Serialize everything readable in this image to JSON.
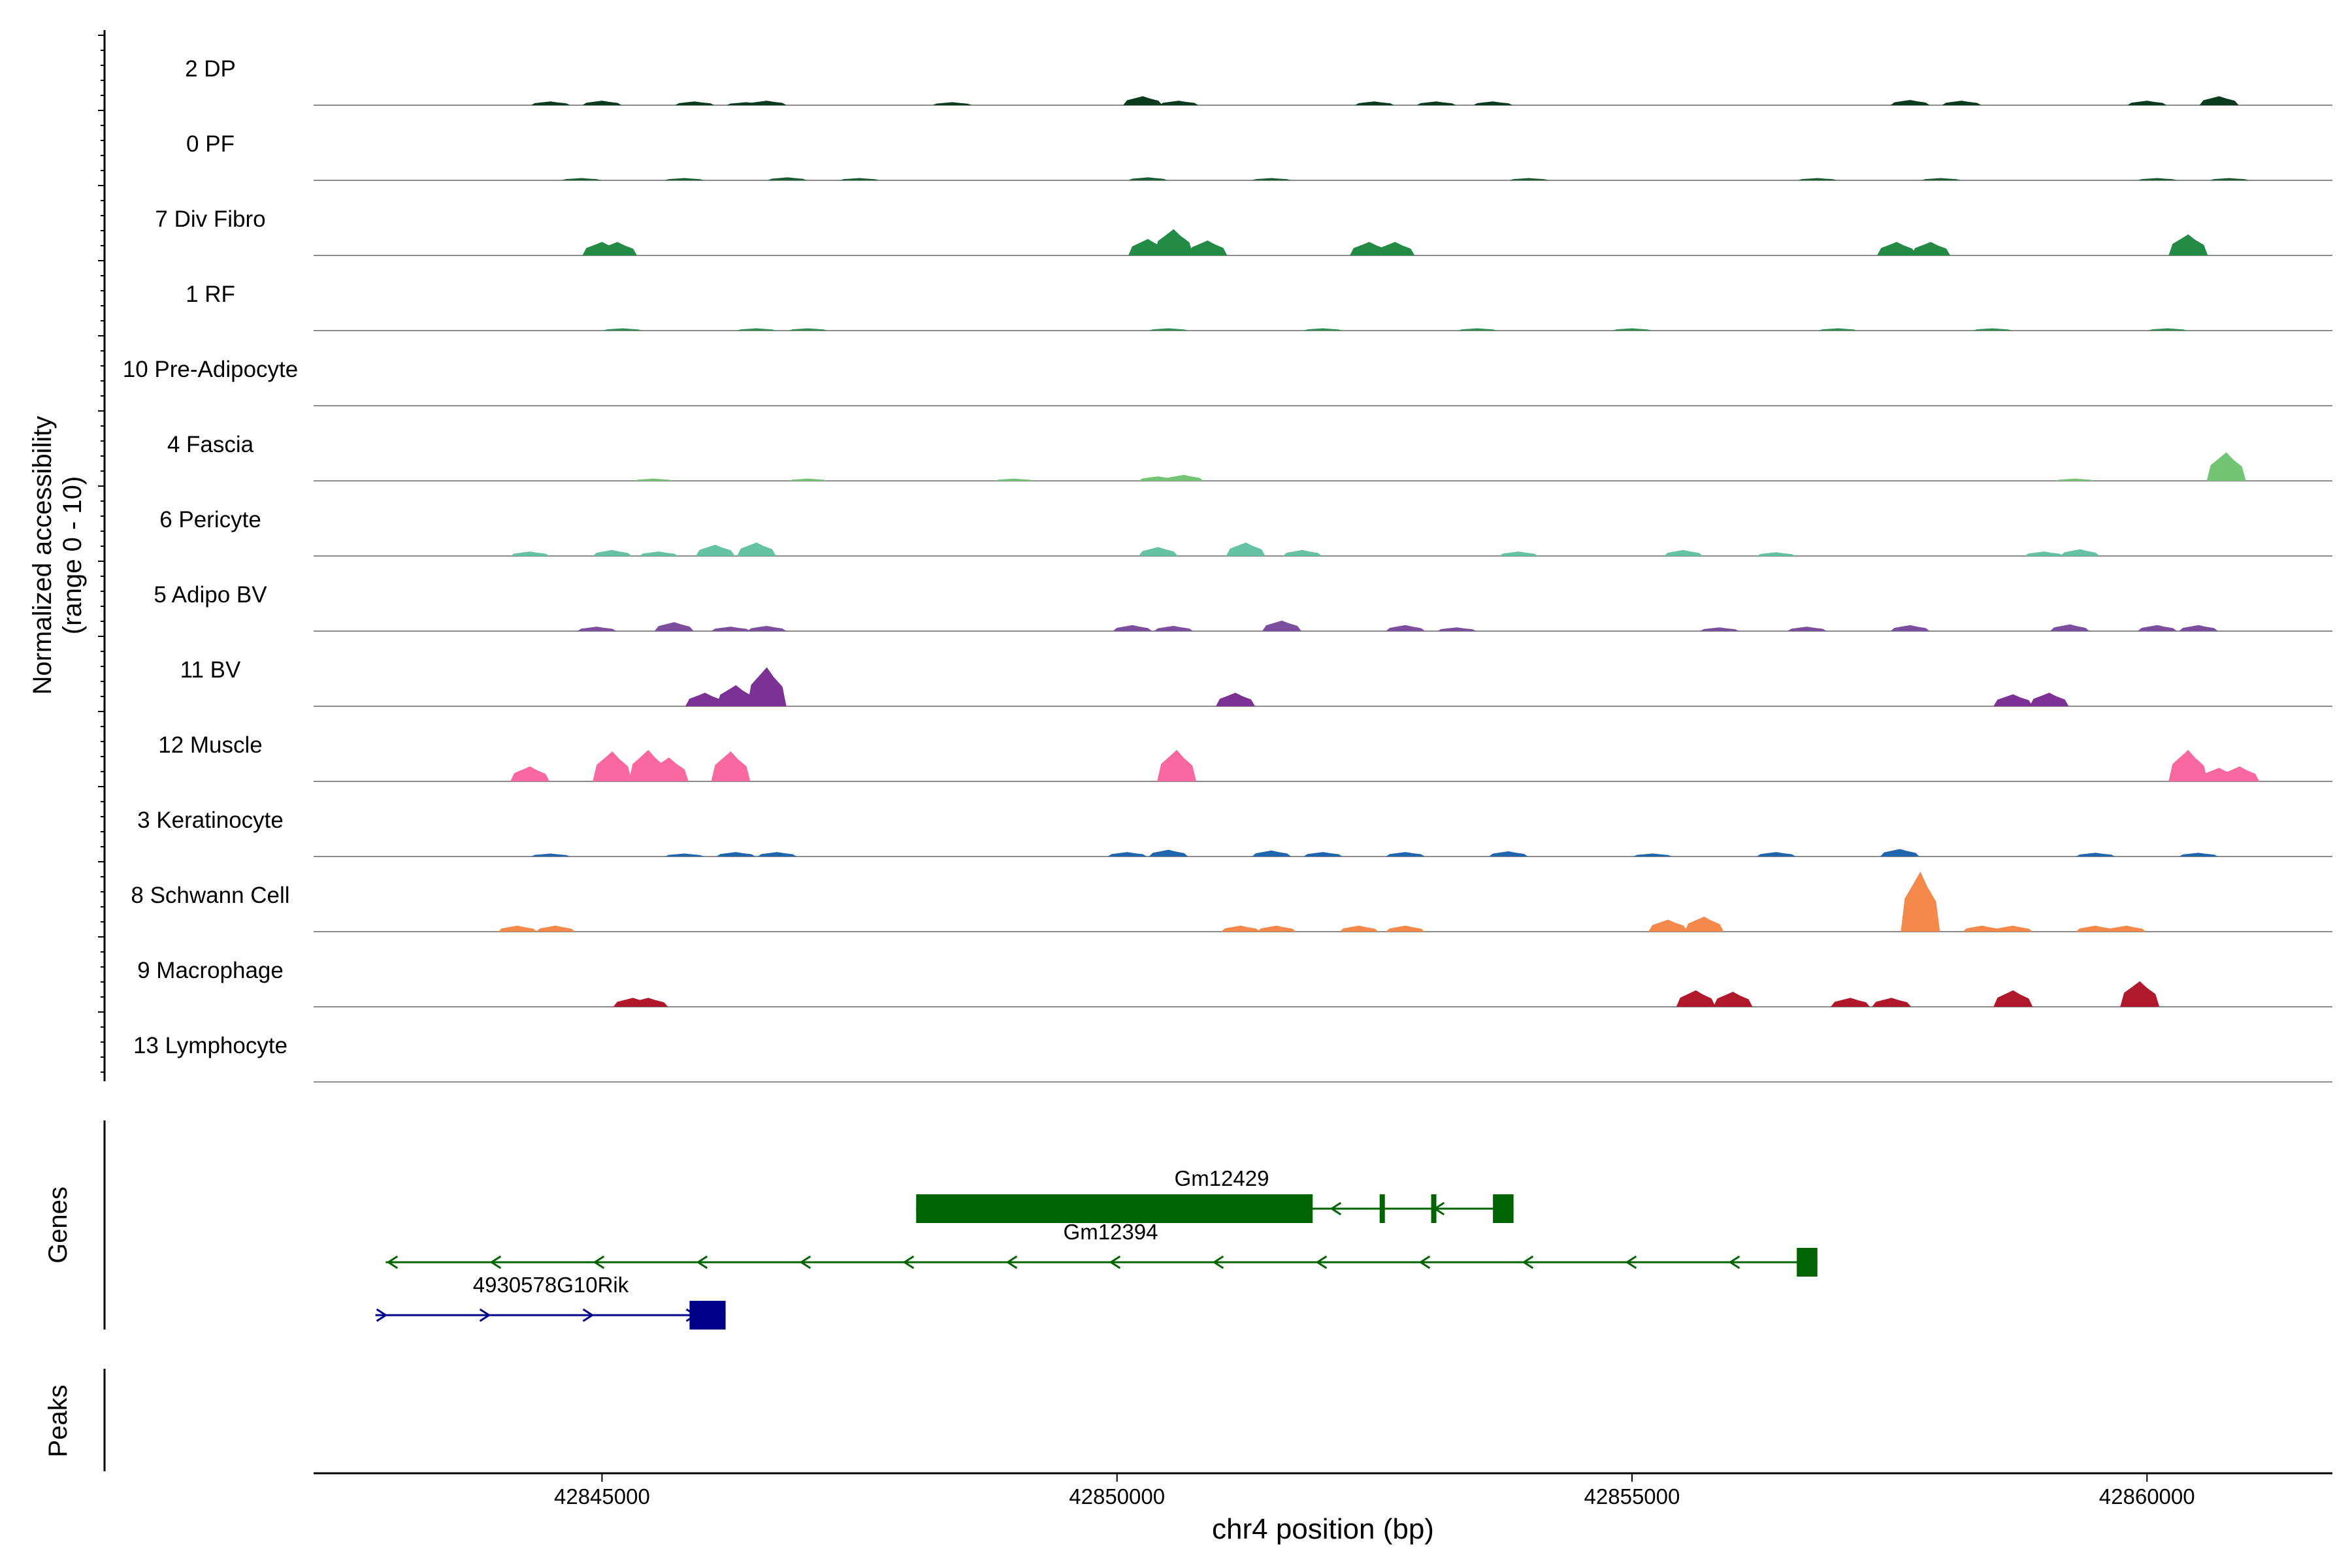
{
  "chart_data": {
    "type": "area",
    "title": "",
    "xlabel": "chr4 position (bp)",
    "ylabel_line1": "Normalized accessibility",
    "ylabel_line2": "(range 0 - 10)",
    "xlim": [
      42842200,
      42861800
    ],
    "ylim": [
      0,
      10
    ],
    "x_ticks": [
      42845000,
      42850000,
      42855000,
      42860000
    ],
    "x_tick_labels": [
      "42845000",
      "42850000",
      "42855000",
      "42860000"
    ],
    "panel_labels": {
      "genes": "Genes",
      "peaks": "Peaks"
    },
    "colors": {
      "baseline": "#8c8c8c",
      "axis": "#000000",
      "gene_green": "#006400",
      "gene_blue": "#00008b"
    },
    "tracks": [
      {
        "name": "2 DP",
        "color": "#0b3b1e",
        "peaks": [
          [
            42844500,
            0.5
          ],
          [
            42845000,
            0.6
          ],
          [
            42845900,
            0.5
          ],
          [
            42846400,
            0.4
          ],
          [
            42846600,
            0.6
          ],
          [
            42848400,
            0.4
          ],
          [
            42850250,
            1.2
          ],
          [
            42850600,
            0.6
          ],
          [
            42852500,
            0.5
          ],
          [
            42853100,
            0.5
          ],
          [
            42853650,
            0.5
          ],
          [
            42857700,
            0.7
          ],
          [
            42858200,
            0.6
          ],
          [
            42860000,
            0.6
          ],
          [
            42860700,
            1.2
          ]
        ]
      },
      {
        "name": "0 PF",
        "color": "#1a5c33",
        "peaks": [
          [
            42844800,
            0.3
          ],
          [
            42845800,
            0.3
          ],
          [
            42846800,
            0.4
          ],
          [
            42847500,
            0.3
          ],
          [
            42850300,
            0.4
          ],
          [
            42851500,
            0.3
          ],
          [
            42854000,
            0.3
          ],
          [
            42856800,
            0.3
          ],
          [
            42858000,
            0.3
          ],
          [
            42860100,
            0.3
          ],
          [
            42860800,
            0.3
          ]
        ]
      },
      {
        "name": "7 Div Fibro",
        "color": "#238b45",
        "peaks": [
          [
            42845000,
            1.8
          ],
          [
            42845150,
            1.8
          ],
          [
            42850300,
            2.2
          ],
          [
            42850550,
            3.5
          ],
          [
            42850880,
            2.0
          ],
          [
            42852450,
            1.8
          ],
          [
            42852700,
            1.8
          ],
          [
            42857570,
            1.8
          ],
          [
            42857900,
            1.8
          ],
          [
            42860400,
            2.8
          ]
        ]
      },
      {
        "name": "1 RF",
        "color": "#2e8b4e",
        "peaks": [
          [
            42845200,
            0.3
          ],
          [
            42846500,
            0.3
          ],
          [
            42847000,
            0.3
          ],
          [
            42850500,
            0.3
          ],
          [
            42852000,
            0.3
          ],
          [
            42853500,
            0.3
          ],
          [
            42855000,
            0.3
          ],
          [
            42857000,
            0.3
          ],
          [
            42858500,
            0.3
          ],
          [
            42860200,
            0.3
          ]
        ]
      },
      {
        "name": "10 Pre-Adipocyte",
        "color": "#41ab5d",
        "peaks": []
      },
      {
        "name": "4 Fascia",
        "color": "#74c476",
        "peaks": [
          [
            42845500,
            0.3
          ],
          [
            42847000,
            0.3
          ],
          [
            42849000,
            0.3
          ],
          [
            42850400,
            0.6
          ],
          [
            42850650,
            0.8
          ],
          [
            42859300,
            0.3
          ],
          [
            42860770,
            3.8
          ]
        ]
      },
      {
        "name": "6 Pericyte",
        "color": "#66c2a5",
        "peaks": [
          [
            42844300,
            0.6
          ],
          [
            42845100,
            0.8
          ],
          [
            42845550,
            0.6
          ],
          [
            42846100,
            1.5
          ],
          [
            42846500,
            1.8
          ],
          [
            42850400,
            1.2
          ],
          [
            42851250,
            1.8
          ],
          [
            42851800,
            0.8
          ],
          [
            42853900,
            0.6
          ],
          [
            42855500,
            0.8
          ],
          [
            42856400,
            0.5
          ],
          [
            42859000,
            0.6
          ],
          [
            42859350,
            0.9
          ]
        ]
      },
      {
        "name": "5 Adipo BV",
        "color": "#7b4f9d",
        "peaks": [
          [
            42844950,
            0.6
          ],
          [
            42845700,
            1.2
          ],
          [
            42846250,
            0.6
          ],
          [
            42846600,
            0.7
          ],
          [
            42850150,
            0.8
          ],
          [
            42850550,
            0.7
          ],
          [
            42851600,
            1.4
          ],
          [
            42852800,
            0.8
          ],
          [
            42853300,
            0.5
          ],
          [
            42855850,
            0.5
          ],
          [
            42856700,
            0.6
          ],
          [
            42857700,
            0.8
          ],
          [
            42859250,
            0.9
          ],
          [
            42860100,
            0.8
          ],
          [
            42860500,
            0.8
          ]
        ]
      },
      {
        "name": "11 BV",
        "color": "#7b3294",
        "peaks": [
          [
            42846000,
            1.8
          ],
          [
            42846300,
            2.8
          ],
          [
            42846600,
            5.2
          ],
          [
            42851150,
            1.8
          ],
          [
            42858700,
            1.6
          ],
          [
            42859050,
            1.8
          ]
        ]
      },
      {
        "name": "12 Muscle",
        "color": "#f768a1",
        "peaks": [
          [
            42844300,
            2.0
          ],
          [
            42845100,
            4.0
          ],
          [
            42845450,
            4.2
          ],
          [
            42845650,
            3.2
          ],
          [
            42846250,
            4.0
          ],
          [
            42850580,
            4.2
          ],
          [
            42860400,
            4.2
          ],
          [
            42860700,
            1.8
          ],
          [
            42860900,
            2.0
          ]
        ]
      },
      {
        "name": "3 Keratinocyte",
        "color": "#2166ac",
        "peaks": [
          [
            42844500,
            0.4
          ],
          [
            42845800,
            0.4
          ],
          [
            42846300,
            0.6
          ],
          [
            42846700,
            0.6
          ],
          [
            42850100,
            0.6
          ],
          [
            42850500,
            0.9
          ],
          [
            42851500,
            0.8
          ],
          [
            42852000,
            0.6
          ],
          [
            42852800,
            0.6
          ],
          [
            42853800,
            0.7
          ],
          [
            42855200,
            0.4
          ],
          [
            42856400,
            0.6
          ],
          [
            42857600,
            1.0
          ],
          [
            42859500,
            0.5
          ],
          [
            42860500,
            0.5
          ]
        ]
      },
      {
        "name": "8 Schwann Cell",
        "color": "#f4894b",
        "peaks": [
          [
            42844180,
            0.8
          ],
          [
            42844550,
            0.8
          ],
          [
            42851200,
            0.8
          ],
          [
            42851550,
            0.8
          ],
          [
            42852350,
            0.8
          ],
          [
            42852800,
            0.8
          ],
          [
            42855350,
            1.6
          ],
          [
            42855700,
            2.0
          ],
          [
            42857800,
            8.0
          ],
          [
            42858400,
            0.8
          ],
          [
            42858700,
            0.8
          ],
          [
            42859500,
            0.8
          ],
          [
            42859800,
            0.8
          ]
        ]
      },
      {
        "name": "9 Macrophage",
        "color": "#b2182b",
        "peaks": [
          [
            42845300,
            1.2
          ],
          [
            42845450,
            1.2
          ],
          [
            42855620,
            2.2
          ],
          [
            42855980,
            2.0
          ],
          [
            42857120,
            1.2
          ],
          [
            42857520,
            1.2
          ],
          [
            42858700,
            2.2
          ],
          [
            42859930,
            3.4
          ]
        ]
      },
      {
        "name": "13 Lymphocyte",
        "color": "#8b0000",
        "peaks": []
      }
    ],
    "genes": [
      {
        "name": "Gm12429",
        "row": 0,
        "strand": "-",
        "color": "#006400",
        "start": 42848050,
        "end": 42853850,
        "exons": [
          [
            42848050,
            42851900
          ],
          [
            42852550,
            42852600
          ],
          [
            42853050,
            42853100
          ],
          [
            42853650,
            42853850
          ]
        ]
      },
      {
        "name": "Gm12394",
        "row": 1,
        "strand": "-",
        "color": "#006400",
        "start": 42842900,
        "end": 42856800,
        "exons": [
          [
            42856600,
            42856800
          ]
        ]
      },
      {
        "name": "4930578G10Rik",
        "row": 2,
        "strand": "+",
        "color": "#00008b",
        "start": 42842800,
        "end": 42846200,
        "exons": [
          [
            42845850,
            42846200
          ]
        ]
      }
    ]
  }
}
